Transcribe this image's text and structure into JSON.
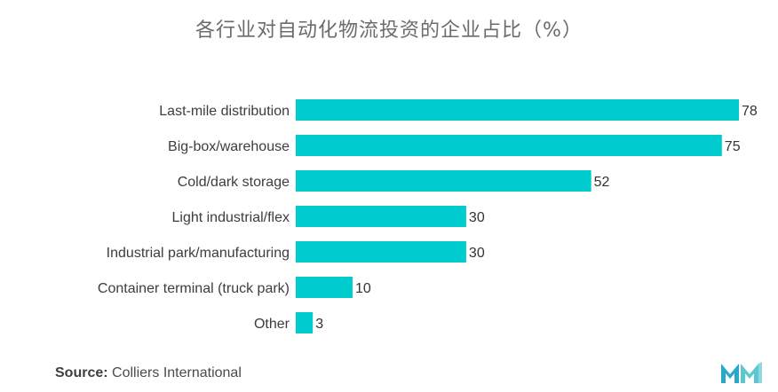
{
  "chart_data": {
    "type": "bar",
    "orientation": "horizontal",
    "title": "各行业对自动化物流投资的企业占比（%）",
    "categories": [
      "Last-mile distribution",
      "Big-box/warehouse",
      "Cold/dark storage",
      "Light industrial/flex",
      "Industrial park/manufacturing",
      "Container terminal (truck park)",
      "Other"
    ],
    "values": [
      78,
      75,
      52,
      30,
      30,
      10,
      3
    ],
    "xlim": [
      0,
      78
    ],
    "grid": false,
    "legend": "none",
    "bar_color": "#00ccd0"
  },
  "source": {
    "label": "Source:",
    "text": "Colliers International"
  },
  "logo": {
    "icon": "mordor-intelligence-logo-icon",
    "colors": [
      "#2aa7c9",
      "#3fc1c9",
      "#7fd3de"
    ]
  }
}
